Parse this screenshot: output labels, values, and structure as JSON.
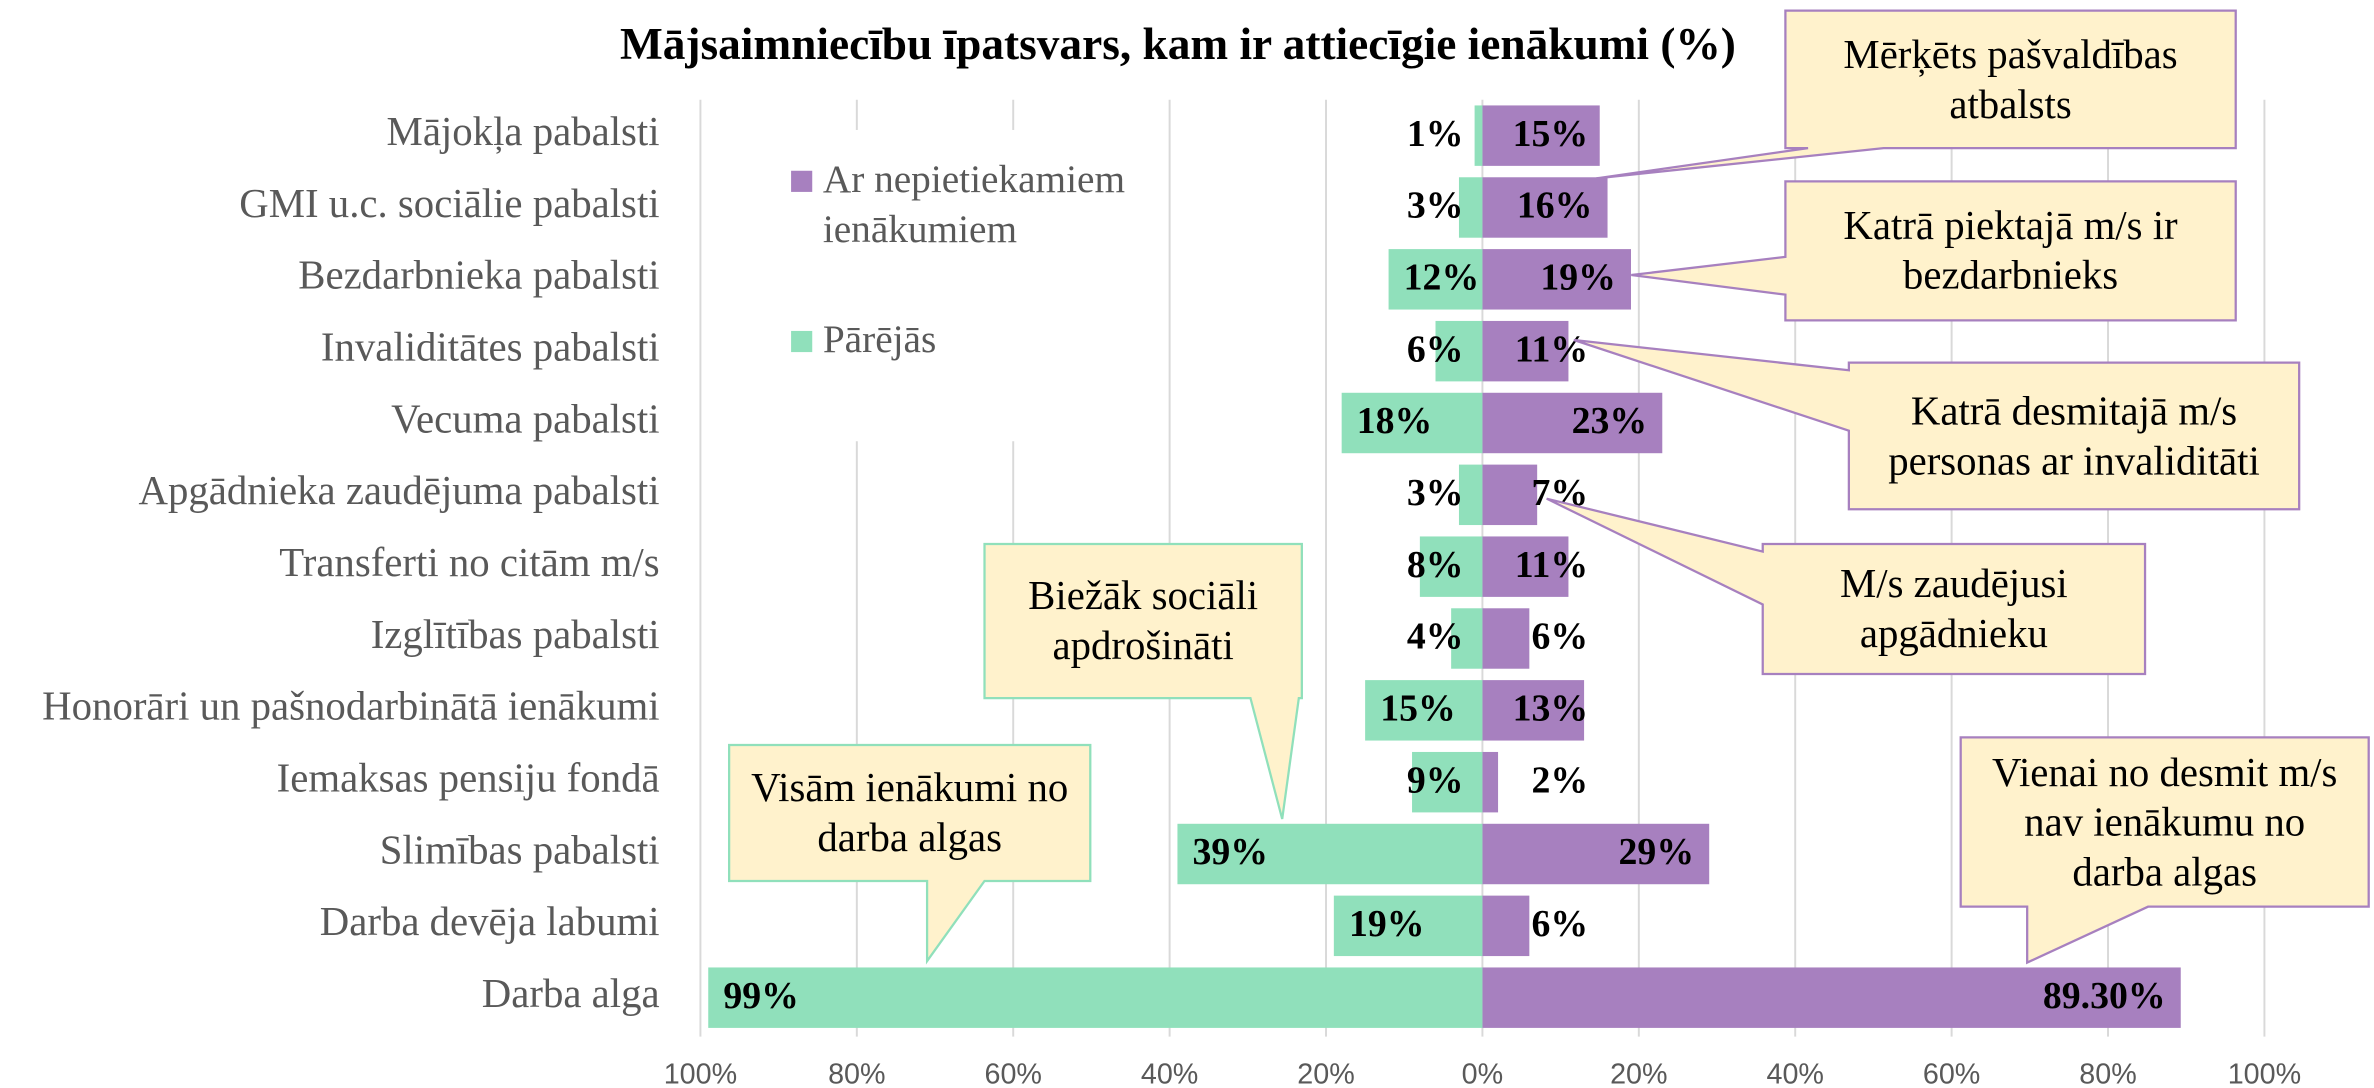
{
  "chart_data": {
    "type": "diverging-bar",
    "title": "Mājsaimniecību īpatsvars, kam ir attiecīgie ienākumi (%)",
    "categories": [
      "Mājokļa pabalsti",
      "GMI u.c. sociālie pabalsti",
      "Bezdarbnieka pabalsti",
      "Invaliditātes pabalsti",
      "Vecuma pabalsti",
      "Apgādnieka zaudējuma pabalsti",
      "Transferti no citām m/s",
      "Izglītības pabalsti",
      "Honorāri un pašnodarbinātā ienākumi",
      "Iemaksas pensiju fondā",
      "Slimības pabalsti",
      "Darba devēja labumi",
      "Darba alga"
    ],
    "series": [
      {
        "name": "Ar nepietiekamiem ienākumiem",
        "color": "#a780bf",
        "values": [
          15,
          16,
          19,
          11,
          23,
          7,
          11,
          6,
          13,
          2,
          29,
          6,
          89.3
        ],
        "value_labels": [
          "15%",
          "16%",
          "19%",
          "11%",
          "23%",
          "7%",
          "11%",
          "6%",
          "13%",
          "2%",
          "29%",
          "6%",
          "89.30%"
        ]
      },
      {
        "name": "Pārējās",
        "color": "#90e0bb",
        "values": [
          -1,
          -3,
          -12,
          -6,
          -18,
          -3,
          -8,
          -4,
          -15,
          -9,
          -39,
          -19,
          -99
        ],
        "value_labels": [
          "1%",
          "3%",
          "12%",
          "6%",
          "18%",
          "3%",
          "8%",
          "4%",
          "15%",
          "9%",
          "39%",
          "19%",
          "99%"
        ]
      }
    ],
    "xlim": [
      -100,
      100
    ],
    "xticks": [
      {
        "value": -100,
        "label": "100%"
      },
      {
        "value": -80,
        "label": "80%"
      },
      {
        "value": -60,
        "label": "60%"
      },
      {
        "value": -40,
        "label": "40%"
      },
      {
        "value": -20,
        "label": "20%"
      },
      {
        "value": 0,
        "label": "0%"
      },
      {
        "value": 20,
        "label": "20%"
      },
      {
        "value": 40,
        "label": "40%"
      },
      {
        "value": 60,
        "label": "60%"
      },
      {
        "value": 80,
        "label": "80%"
      },
      {
        "value": 100,
        "label": "100%"
      }
    ],
    "grid": true,
    "annotations": [
      {
        "text": "Mērķēts pašvaldības atbalsts"
      },
      {
        "text": "Katrā piektajā m/s ir bezdarbnieks"
      },
      {
        "text": "Katrā desmitajā m/s personas ar invaliditāti"
      },
      {
        "text": "M/s zaudējusi apgādnieku"
      },
      {
        "text": "Biežāk sociāli apdrošināti"
      },
      {
        "text": "Visām ienākumi no darba algas"
      },
      {
        "text": "Vienai no desmit m/s nav ienākumu no darba algas"
      }
    ]
  }
}
